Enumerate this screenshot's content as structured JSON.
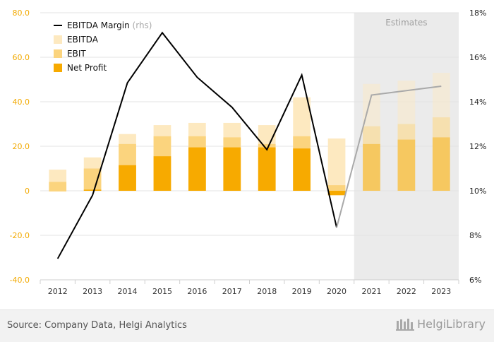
{
  "chart_data": {
    "type": "bar",
    "categories": [
      "2012",
      "2013",
      "2014",
      "2015",
      "2016",
      "2017",
      "2018",
      "2019",
      "2020",
      "2021",
      "2022",
      "2023"
    ],
    "estimate_from_index": 9,
    "estimates_label": "Estimates",
    "y_left": {
      "min": -40,
      "max": 80,
      "ticks": [
        "80.0",
        "60.0",
        "40.0",
        "20.0",
        "0",
        "-20.0",
        "-40.0"
      ],
      "tick_values": [
        80,
        60,
        40,
        20,
        0,
        -20,
        -40
      ]
    },
    "y_right": {
      "min": 6,
      "max": 18,
      "ticks": [
        "18%",
        "16%",
        "14%",
        "12%",
        "10%",
        "8%",
        "6%"
      ],
      "tick_values": [
        18,
        16,
        14,
        12,
        10,
        8,
        6
      ]
    },
    "series": [
      {
        "name": "EBITDA",
        "type": "bar",
        "color": "#fde9c0",
        "values": [
          9.5,
          15,
          25.5,
          29.5,
          30.5,
          30.5,
          29.5,
          42,
          23.5,
          48,
          49.5,
          53
        ]
      },
      {
        "name": "EBIT",
        "type": "bar",
        "color": "#fbd47e",
        "values": [
          4,
          10,
          21,
          24.5,
          24.5,
          24,
          21,
          24.5,
          2.5,
          29,
          30,
          33
        ]
      },
      {
        "name": "Net Profit",
        "type": "bar",
        "color": "#f7aa00",
        "values": [
          0,
          0.5,
          11.5,
          15.5,
          19.5,
          19.5,
          19.5,
          19,
          -2,
          21,
          23,
          24
        ]
      },
      {
        "name": "EBITDA Margin",
        "name_suffix": "(rhs)",
        "type": "line",
        "axis": "right",
        "color": "#000000",
        "values": [
          6.95,
          9.8,
          14.85,
          17.1,
          15.1,
          13.75,
          11.85,
          15.2,
          8.35,
          14.3,
          14.5,
          14.7
        ]
      }
    ],
    "legend_position": "top-left",
    "grid": true
  },
  "colors": {
    "estimate_shade": "#ebebeb",
    "estimate_line": "#a9a9a9",
    "left_axis_text": "#f2a900",
    "grid": "#e3e3e3"
  },
  "footer": {
    "source": "Source: Company Data, Helgi Analytics",
    "brand": "HelgiLibrary"
  }
}
